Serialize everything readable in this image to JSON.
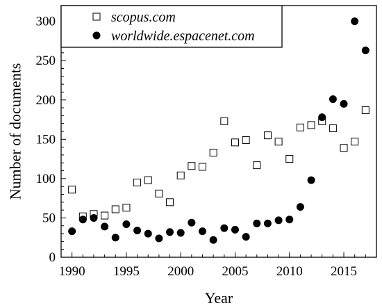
{
  "chart_data": {
    "type": "scatter",
    "xlabel": "Year",
    "ylabel": "Number of documents",
    "xlim": [
      1989,
      2018
    ],
    "ylim": [
      0,
      320
    ],
    "x_ticks": [
      1990,
      1995,
      2000,
      2005,
      2010,
      2015
    ],
    "y_ticks": [
      0,
      50,
      100,
      150,
      200,
      250,
      300
    ],
    "legend": "top-left",
    "grid": false,
    "series": [
      {
        "name": "scopus.com",
        "marker": "open-square",
        "color": "#000000",
        "x": [
          1990,
          1991,
          1992,
          1993,
          1994,
          1995,
          1996,
          1997,
          1998,
          1999,
          2000,
          2001,
          2002,
          2003,
          2004,
          2005,
          2006,
          2007,
          2008,
          2009,
          2010,
          2011,
          2012,
          2013,
          2014,
          2015,
          2016,
          2017
        ],
        "y": [
          86,
          52,
          55,
          53,
          61,
          63,
          95,
          98,
          81,
          70,
          104,
          116,
          115,
          133,
          173,
          146,
          149,
          117,
          155,
          147,
          125,
          165,
          168,
          173,
          164,
          139,
          147,
          187
        ]
      },
      {
        "name": "worldwide.espacenet.com",
        "marker": "filled-circle",
        "color": "#000000",
        "x": [
          1990,
          1991,
          1992,
          1993,
          1994,
          1995,
          1996,
          1997,
          1998,
          1999,
          2000,
          2001,
          2002,
          2003,
          2004,
          2005,
          2006,
          2007,
          2008,
          2009,
          2010,
          2011,
          2012,
          2013,
          2014,
          2015,
          2016,
          2017
        ],
        "y": [
          33,
          48,
          50,
          39,
          25,
          42,
          34,
          30,
          24,
          32,
          31,
          44,
          33,
          22,
          37,
          35,
          26,
          43,
          43,
          47,
          48,
          64,
          98,
          178,
          201,
          195,
          300,
          263
        ]
      }
    ]
  }
}
